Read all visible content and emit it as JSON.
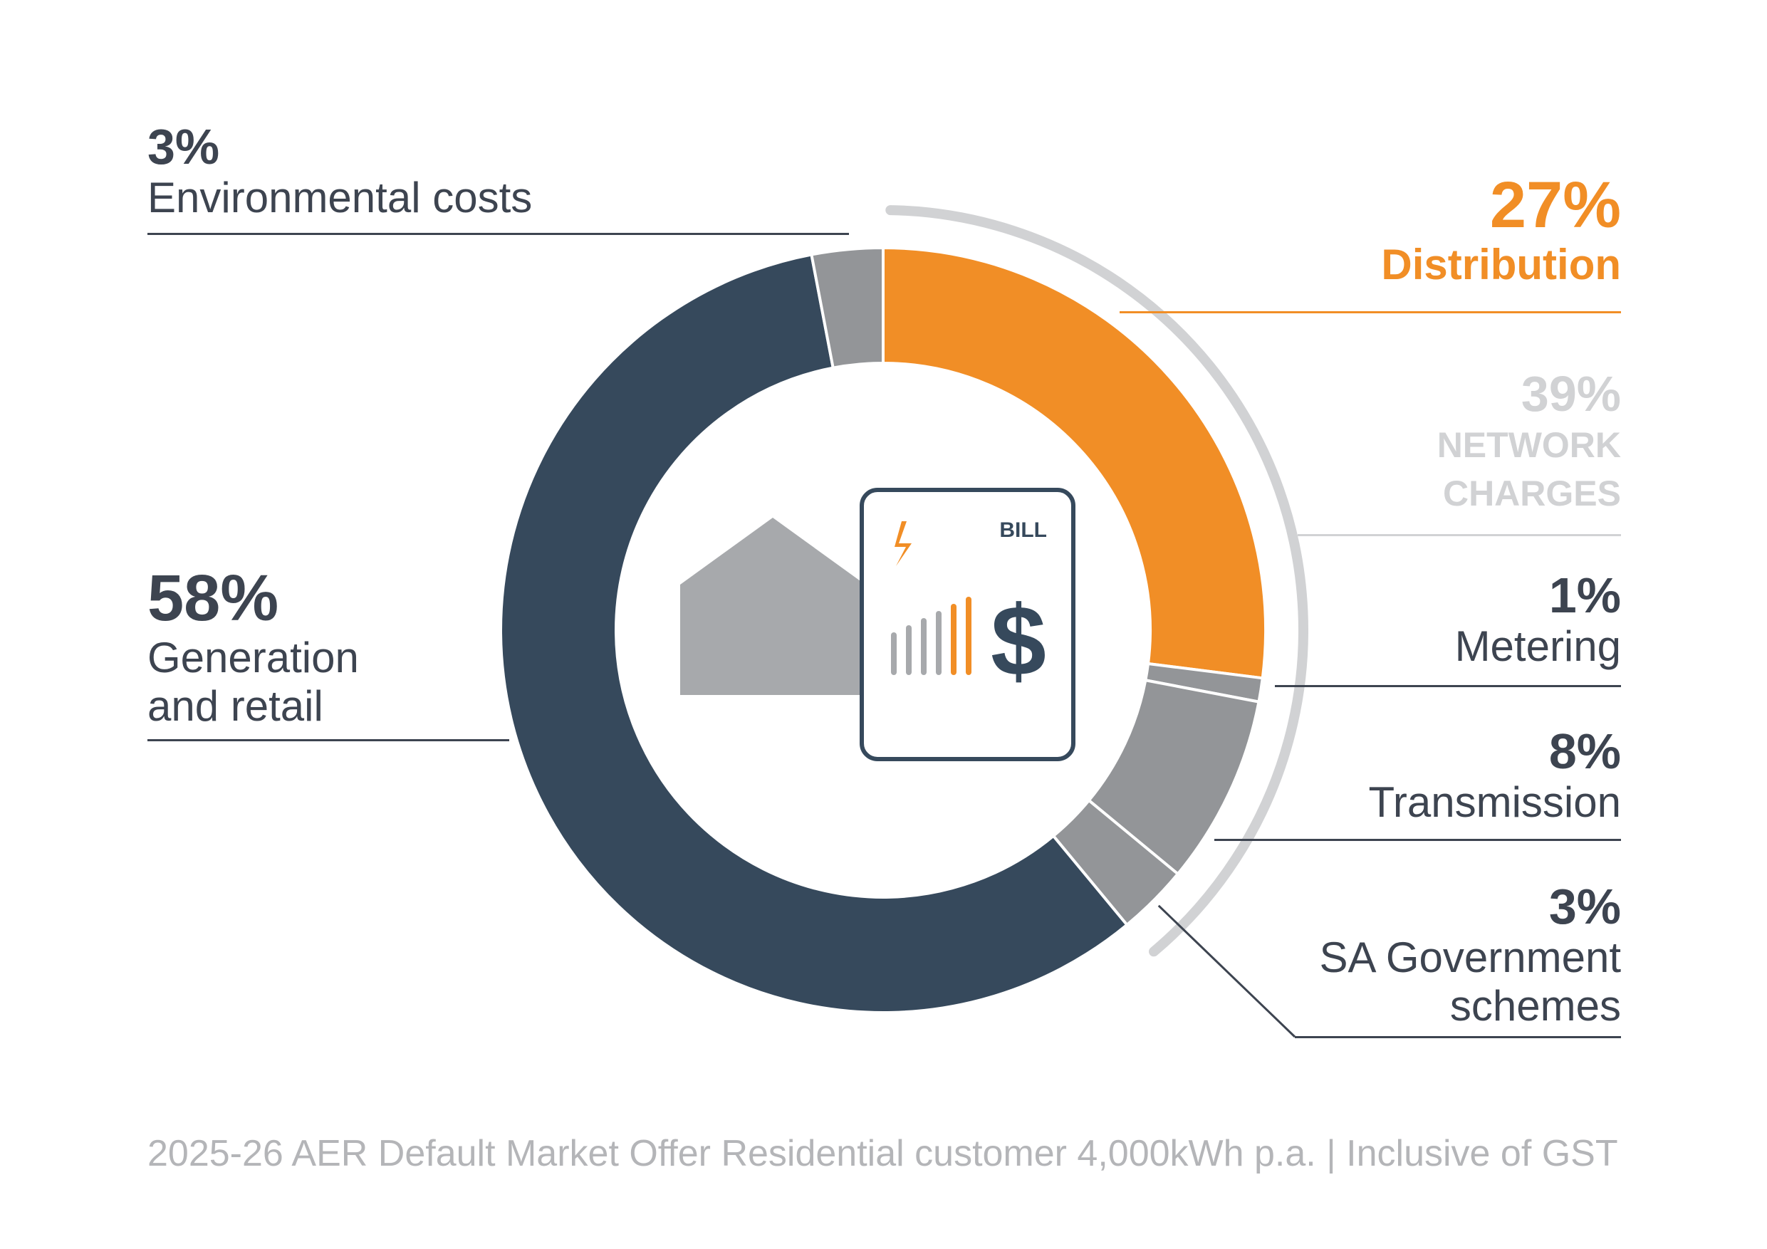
{
  "chart_data": {
    "type": "pie",
    "variant": "donut",
    "slices": [
      {
        "label": "Distribution",
        "value": 27,
        "pct_text": "27%",
        "name_text": "Distribution",
        "color": "#f18e26"
      },
      {
        "label": "Metering",
        "value": 1,
        "pct_text": "1%",
        "name_text": "Metering",
        "color": "#939598"
      },
      {
        "label": "Transmission",
        "value": 8,
        "pct_text": "8%",
        "name_text": "Transmission",
        "color": "#939598"
      },
      {
        "label": "SA Government schemes",
        "value": 3,
        "pct_text": "3%",
        "name_line1": "SA Government",
        "name_line2": "schemes",
        "color": "#939598"
      },
      {
        "label": "Generation and retail",
        "value": 58,
        "pct_text": "58%",
        "name_line1": "Generation",
        "name_line2": "and retail",
        "color": "#36495c"
      },
      {
        "label": "Environmental costs",
        "value": 3,
        "pct_text": "3%",
        "name_text": "Environmental costs",
        "color": "#939598"
      }
    ],
    "group": {
      "label": "NETWORK CHARGES",
      "value": 39,
      "pct_text": "39%",
      "line1": "NETWORK",
      "line2": "CHARGES",
      "color": "#d1d2d4"
    },
    "footnote": "2025-26 AER Default Market Offer Residential customer 4,000kWh p.a. | Inclusive of GST"
  },
  "icon": {
    "bill_label": "BILL",
    "currency_symbol": "$",
    "bolt": "lightning-icon",
    "house": "house-icon"
  },
  "colors": {
    "accent": "#f18e26",
    "dark": "#36495c",
    "grey": "#939598",
    "label_dark": "#3d4450",
    "light": "#d1d2d4"
  }
}
